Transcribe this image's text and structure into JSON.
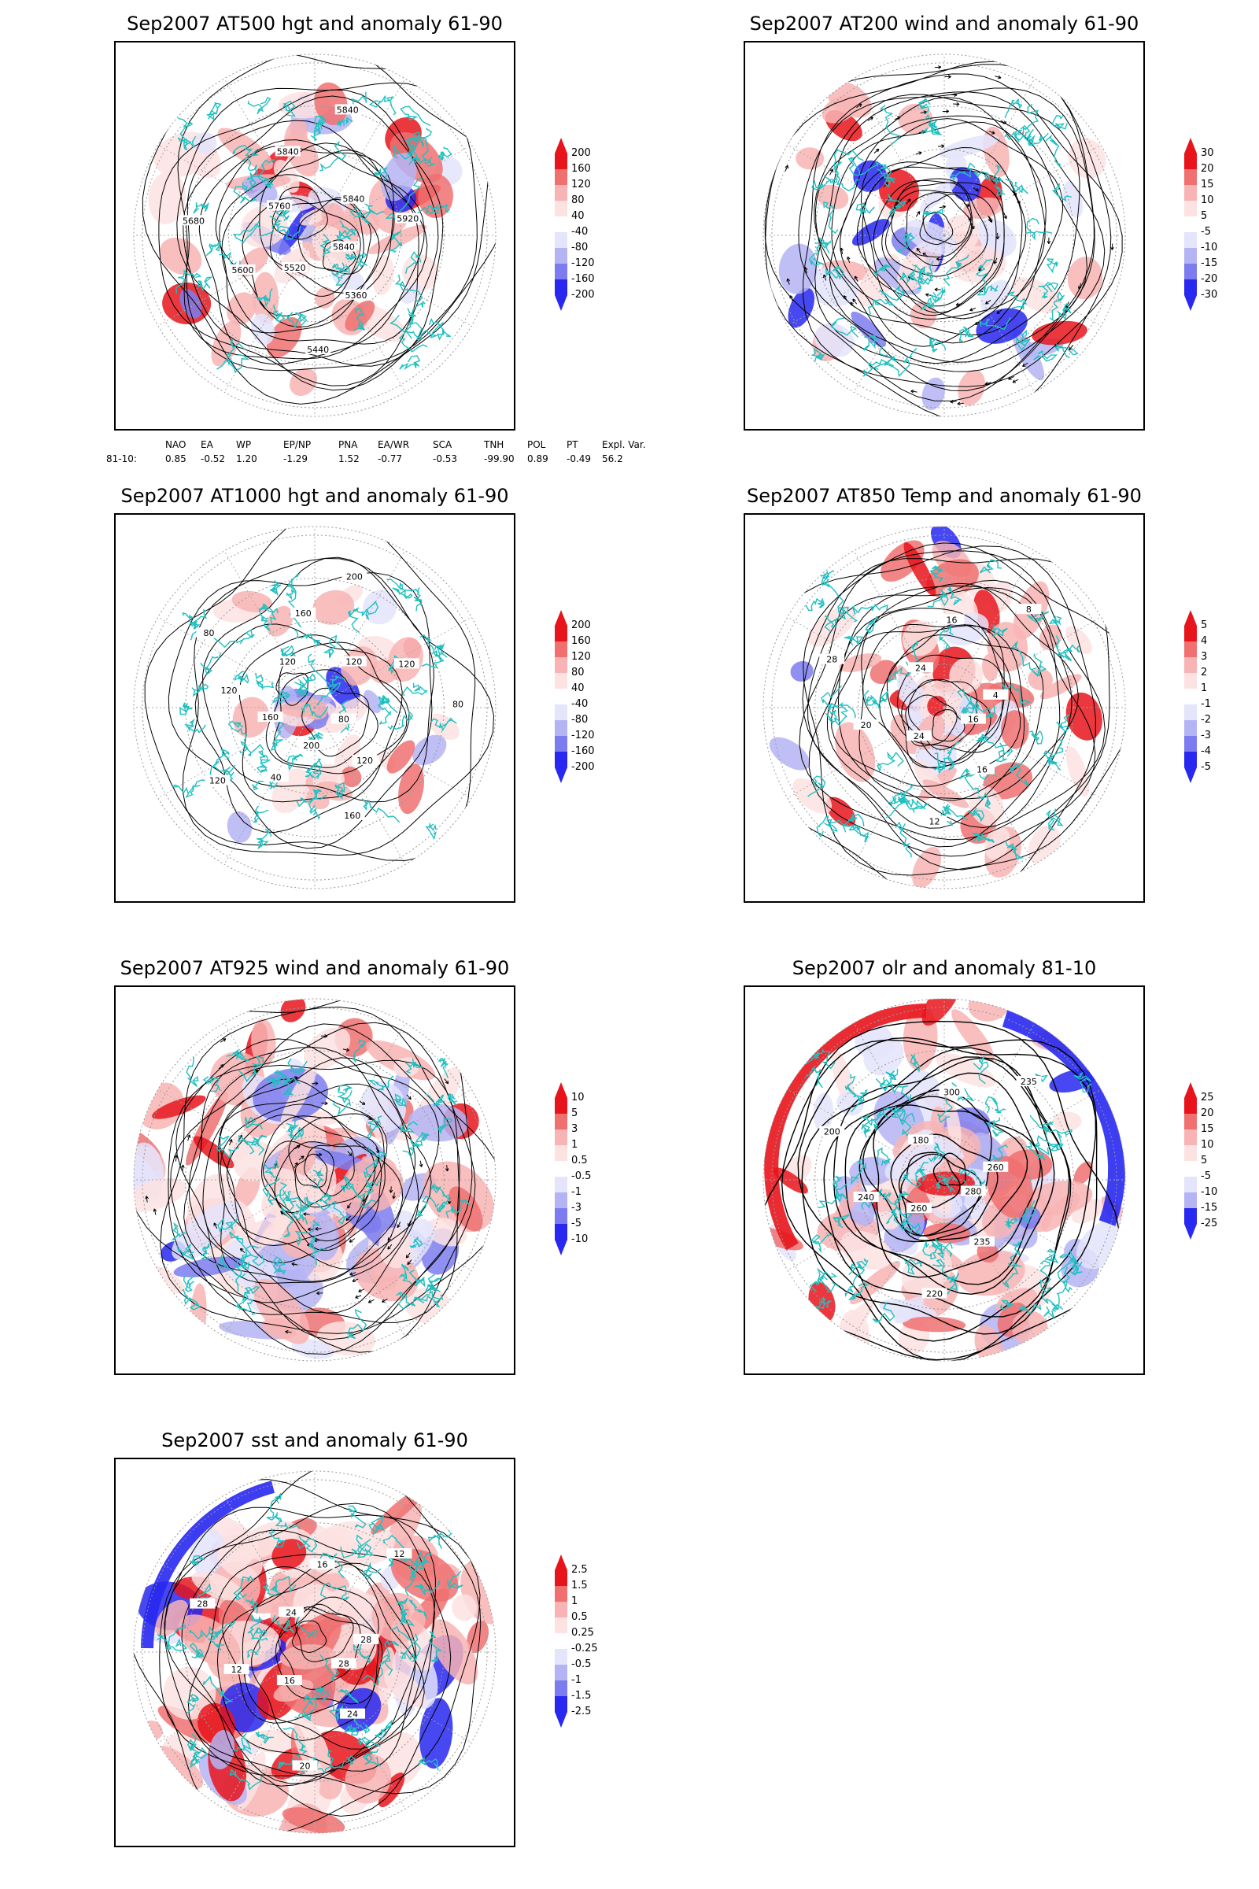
{
  "panels": [
    {
      "id": "p500",
      "title": "Sep2007 AT500 hgt and anomaly 61-90",
      "colorbar": [
        "200",
        "160",
        "120",
        "80",
        "40",
        "-40",
        "-80",
        "-120",
        "-160",
        "-200"
      ],
      "contour_labels": [
        "5840",
        "5360",
        "5440",
        "5520",
        "5600",
        "5680",
        "5760",
        "5840",
        "5840",
        "5840",
        "5920"
      ]
    },
    {
      "id": "p200",
      "title": "Sep2007 AT200 wind and anomaly 61-90",
      "colorbar": [
        "30",
        "20",
        "15",
        "10",
        "5",
        "-5",
        "-10",
        "-15",
        "-20",
        "-30"
      ],
      "contour_labels": []
    },
    {
      "id": "p1000",
      "title": "Sep2007 AT1000 hgt and anomaly 61-90",
      "colorbar": [
        "200",
        "160",
        "120",
        "80",
        "40",
        "-40",
        "-80",
        "-120",
        "-160",
        "-200"
      ],
      "contour_labels": [
        "80",
        "120",
        "160",
        "200",
        "40",
        "120",
        "160",
        "120",
        "80",
        "120",
        "160",
        "200",
        "120",
        "120",
        "80"
      ]
    },
    {
      "id": "p850",
      "title": "Sep2007 AT850 Temp and anomaly 61-90",
      "colorbar": [
        "5",
        "4",
        "3",
        "2",
        "1",
        "-1",
        "-2",
        "-3",
        "-4",
        "-5"
      ],
      "contour_labels": [
        "16",
        "16",
        "12",
        "24",
        "20",
        "28",
        "24",
        "16",
        "8",
        "4"
      ]
    },
    {
      "id": "p925",
      "title": "Sep2007 AT925 wind and anomaly 61-90",
      "colorbar": [
        "10",
        "5",
        "3",
        "1",
        "0.5",
        "-0.5",
        "-1",
        "-3",
        "-5",
        "-10"
      ],
      "contour_labels": []
    },
    {
      "id": "polr",
      "title": "Sep2007 olr and anomaly 81-10",
      "colorbar": [
        "25",
        "20",
        "15",
        "10",
        "5",
        "-5",
        "-10",
        "-15",
        "-25"
      ],
      "contour_labels": [
        "280",
        "235",
        "220",
        "260",
        "240",
        "200",
        "180",
        "300",
        "235",
        "260"
      ]
    },
    {
      "id": "psst",
      "title": "Sep2007 sst and anomaly 61-90",
      "colorbar": [
        "2.5",
        "1.5",
        "1",
        "0.5",
        "0.25",
        "-0.25",
        "-0.5",
        "-1",
        "-1.5",
        "-2.5"
      ],
      "contour_labels": [
        "28",
        "24",
        "20",
        "16",
        "12",
        "28",
        "24",
        "16",
        "12",
        "28"
      ]
    }
  ],
  "indices": {
    "headers": [
      "NAO",
      "EA",
      "WP",
      "EP/NP",
      "PNA",
      "EA/WR",
      "SCA",
      "TNH",
      "POL",
      "PT",
      "Expl. Var."
    ],
    "row_label": "81-10:",
    "values": [
      "0.85",
      "-0.52",
      "1.20",
      "-1.29",
      "1.52",
      "-0.77",
      "-0.53",
      "-99.90",
      "0.89",
      "-0.49",
      "56.2"
    ]
  },
  "colors": {
    "red_dark": "#e8141c",
    "red_mid": "#f07070",
    "red_light": "#f8b4b4",
    "red_pale": "#fde2e2",
    "blue_pale": "#e4e4fb",
    "blue_light": "#b4b4f4",
    "blue_mid": "#7c7cf0",
    "blue_dark": "#2828f0",
    "coast": "#20c0c0"
  }
}
